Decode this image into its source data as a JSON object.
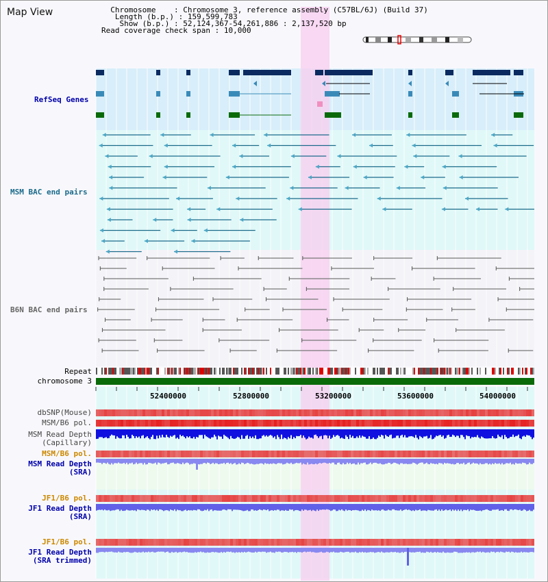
{
  "title": "Map View",
  "header": {
    "chromosome_key": "Chromosome    ",
    "chromosome_val": "Chromosome 3, reference assembly (C57BL/6J) (Build 37)",
    "length_key": " Length (b.p.) ",
    "length_val": "159,599,783",
    "show_key": "  Show (b.p.) ",
    "show_val": "52,124,367-54,261,886 : 2,137,520 bp",
    "coverage_key": "Read coverage check span",
    "coverage_val": "10,000"
  },
  "track_labels": {
    "refseq": "RefSeq Genes",
    "msm_bac": "MSM BAC end pairs",
    "b6n_bac": "B6N BAC end pairs",
    "repeat": "Repeat",
    "chromosome": "chromosome 3",
    "dbsnp": "dbSNP(Mouse)",
    "msm_b6_pol": "MSM/B6 pol.",
    "msm_depth_cap_1": "MSM Read Depth",
    "msm_depth_cap_2": "(Capillary)",
    "msm_b6_pol_sra": "MSM/B6 pol.",
    "msm_depth_sra_1": "MSM Read Depth",
    "msm_depth_sra_2": "(SRA)",
    "jf1_b6_pol": "JF1/B6 pol.",
    "jf1_depth_1": "JF1 Read Depth",
    "jf1_depth_2": "(SRA)",
    "jf1_b6_pol_2": "JF1/B6 pol.",
    "jf1_depth_trim_1": "JF1 Read Depth",
    "jf1_depth_trim_2": "(SRA trimmed)"
  },
  "axis_ticks": [
    "52400000",
    "52800000",
    "53200000",
    "53600000",
    "54000000"
  ],
  "colors": {
    "refseq_bg": "#d8eefa",
    "msm_bg": "#e0f8f8",
    "b6n_bg": "#f4f4f8",
    "lower_bg": "#e0f8f8",
    "highlight": "#f7d0f0",
    "refseq_dark": "#0a2a60",
    "refseq_mid": "#3a8ab8",
    "refseq_green": "#0a6a0a",
    "msm_line": "#1a6a8a",
    "b6n_line": "#777777",
    "chromosome_bar": "#0a6a0a",
    "label_blue": "#0000aa",
    "label_orange": "#cc8800",
    "label_gray": "#444444"
  }
}
